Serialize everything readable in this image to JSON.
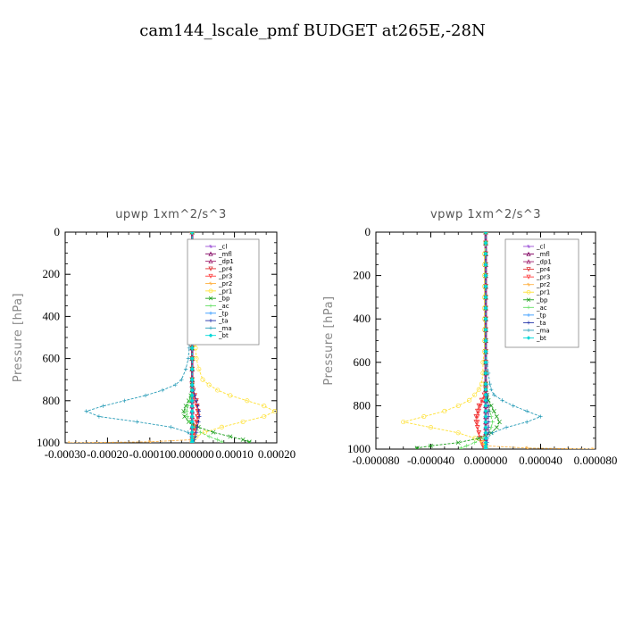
{
  "figure": {
    "title": "cam144_lscale_pmf  BUDGET at265E,-28N"
  },
  "legend_order": [
    "_cl",
    "_mfl",
    "_dp1",
    "_pr4",
    "_pr3",
    "_pr2",
    "_pr1",
    "_bp",
    "_ac",
    "_tp",
    "_ta",
    "_ma",
    "_bt"
  ],
  "colors": {
    "_cl": "#9a4fd6",
    "_mfl": "#800060",
    "_dp1": "#a0206e",
    "_pr4": "#e03030",
    "_pr3": "#ff3a3a",
    "_pr2": "#ffb347",
    "_pr1": "#ffe135",
    "_bp": "#1a9e1a",
    "_ac": "#66e066",
    "_tp": "#3399ff",
    "_ta": "#1f2fa8",
    "_ma": "#2a9db8",
    "_bt": "#00d8d8"
  },
  "chart_data": [
    {
      "type": "line",
      "title": "upwp   1xm^2/s^3",
      "xlabel": "",
      "ylabel": "Pressure [hPa]",
      "xlim": [
        -0.0003,
        0.0002
      ],
      "ylim": [
        1000,
        0
      ],
      "xticks": [
        "-0.00030",
        "-0.00020",
        "-0.00010",
        "0.000000",
        "0.00010",
        "0.00020"
      ],
      "yticks": [
        "0",
        "200",
        "400",
        "600",
        "800",
        "1000"
      ],
      "legend_position": "top-right",
      "pressure": [
        0,
        50,
        100,
        150,
        200,
        250,
        300,
        350,
        400,
        450,
        500,
        550,
        600,
        650,
        700,
        725,
        750,
        775,
        800,
        825,
        850,
        875,
        900,
        925,
        950,
        970,
        985,
        995,
        1000
      ],
      "series": [
        {
          "name": "_cl",
          "values": [
            0,
            0,
            0,
            0,
            0,
            0,
            0,
            0,
            0,
            0,
            0,
            0,
            0,
            0,
            0,
            0,
            0,
            0,
            0,
            0,
            0,
            0,
            0,
            0,
            0,
            0,
            0,
            0,
            0
          ]
        },
        {
          "name": "_mfl",
          "values": [
            0,
            0,
            0,
            0,
            0,
            0,
            0,
            0,
            0,
            0,
            0,
            0,
            0,
            0,
            0,
            0,
            0,
            0,
            0,
            0,
            0,
            0,
            0,
            0,
            0,
            0,
            0,
            0,
            0
          ]
        },
        {
          "name": "_dp1",
          "values": [
            0,
            0,
            0,
            0,
            0,
            0,
            0,
            0,
            0,
            0,
            0,
            0,
            0,
            0,
            0,
            0,
            0,
            0,
            0,
            0,
            0,
            0,
            0,
            0,
            0,
            0,
            0,
            0,
            0
          ]
        },
        {
          "name": "_pr4",
          "values": [
            0,
            0,
            0,
            0,
            0,
            0,
            0,
            0,
            0,
            0,
            0,
            0,
            0,
            0,
            0,
            0,
            3e-06,
            6e-06,
            1e-05,
            1.2e-05,
            1.3e-05,
            1.2e-05,
            1e-05,
            7e-06,
            4e-06,
            2e-06,
            1e-06,
            0,
            0
          ]
        },
        {
          "name": "_pr3",
          "values": [
            0,
            0,
            0,
            0,
            0,
            0,
            0,
            0,
            0,
            0,
            0,
            0,
            0,
            0,
            0,
            0,
            2e-06,
            5e-06,
            8e-06,
            1.1e-05,
            1.4e-05,
            1.4e-05,
            1.2e-05,
            9e-06,
            6e-06,
            4e-06,
            2e-06,
            1e-06,
            0
          ]
        },
        {
          "name": "_pr2",
          "values": [
            0,
            0,
            0,
            0,
            0,
            0,
            0,
            0,
            0,
            0,
            0,
            0,
            0,
            0,
            0,
            0,
            0,
            0,
            0,
            0,
            0,
            0,
            0,
            0,
            0,
            0,
            0,
            -0.0001,
            -0.00029
          ]
        },
        {
          "name": "_pr1",
          "values": [
            0,
            1e-06,
            2e-06,
            3e-06,
            4e-06,
            5e-06,
            5e-06,
            5e-06,
            6e-06,
            6e-06,
            7e-06,
            8e-06,
            1e-05,
            1.6e-05,
            2.5e-05,
            4e-05,
            6e-05,
            9e-05,
            0.00013,
            0.00017,
            0.000195,
            0.00017,
            0.00012,
            7e-05,
            3e-05,
            1e-05,
            3e-06,
            0,
            0
          ]
        },
        {
          "name": "_bp",
          "values": [
            0,
            0,
            0,
            0,
            0,
            0,
            0,
            0,
            0,
            0,
            0,
            0,
            0,
            0,
            0,
            0,
            0,
            -3e-06,
            -8e-06,
            -1.5e-05,
            -2e-05,
            -1.8e-05,
            -8e-06,
            1.5e-05,
            5e-05,
            9e-05,
            0.00012,
            0.000135,
            0.000135
          ]
        },
        {
          "name": "_ac",
          "values": [
            0,
            0,
            0,
            0,
            0,
            0,
            0,
            0,
            0,
            0,
            0,
            0,
            0,
            0,
            0,
            0,
            0,
            -2e-06,
            -6e-06,
            -1e-05,
            -1.3e-05,
            -1.1e-05,
            -6e-06,
            5e-06,
            2e-05,
            4e-05,
            6e-05,
            7e-05,
            7e-05
          ]
        },
        {
          "name": "_tp",
          "values": [
            0,
            0,
            0,
            0,
            0,
            0,
            0,
            0,
            0,
            0,
            0,
            0,
            0,
            0,
            0,
            0,
            0,
            0,
            0,
            0,
            0,
            0,
            0,
            0,
            0,
            0,
            0,
            0,
            0
          ]
        },
        {
          "name": "_ta",
          "values": [
            0,
            0,
            0,
            0,
            0,
            0,
            0,
            0,
            0,
            0,
            0,
            0,
            0,
            0,
            0,
            0,
            3e-06,
            6e-06,
            1e-05,
            1.3e-05,
            1.6e-05,
            1.7e-05,
            1.5e-05,
            1.2e-05,
            1e-05,
            8e-06,
            5e-06,
            2e-06,
            0
          ]
        },
        {
          "name": "_ma",
          "values": [
            0,
            0,
            -1e-06,
            -1e-06,
            -2e-06,
            -3e-06,
            -3e-06,
            -4e-06,
            -4e-06,
            -5e-06,
            -6e-06,
            -7e-06,
            -9e-06,
            -1.5e-05,
            -2.5e-05,
            -4e-05,
            -7e-05,
            -0.00011,
            -0.00016,
            -0.00021,
            -0.00025,
            -0.00022,
            -0.00013,
            -5e-05,
            -1e-05,
            -2e-06,
            0,
            0,
            0
          ]
        },
        {
          "name": "_bt",
          "values": [
            0,
            0,
            0,
            0,
            0,
            0,
            0,
            0,
            0,
            0,
            0,
            0,
            0,
            0,
            0,
            0,
            0,
            0,
            0,
            0,
            0,
            0,
            0,
            0,
            0,
            0,
            0,
            0,
            0
          ]
        }
      ]
    },
    {
      "type": "line",
      "title": "vpwp   1xm^2/s^3",
      "xlabel": "",
      "ylabel": "Pressure [hPa]",
      "xlim": [
        -8e-05,
        8e-05
      ],
      "ylim": [
        1000,
        0
      ],
      "xticks": [
        "-0.000080",
        "-0.000040",
        "0.000000",
        "0.000040",
        "0.000080"
      ],
      "yticks": [
        "0",
        "200",
        "400",
        "600",
        "800",
        "1000"
      ],
      "legend_position": "top-right",
      "pressure": [
        0,
        50,
        100,
        150,
        200,
        250,
        300,
        350,
        400,
        450,
        500,
        550,
        600,
        650,
        700,
        725,
        750,
        775,
        800,
        825,
        850,
        875,
        900,
        925,
        950,
        970,
        985,
        995,
        1000
      ],
      "series": [
        {
          "name": "_cl",
          "values": [
            0,
            0,
            0,
            0,
            0,
            0,
            0,
            0,
            0,
            0,
            0,
            0,
            0,
            0,
            0,
            0,
            0,
            0,
            0,
            0,
            0,
            0,
            0,
            0,
            0,
            0,
            0,
            0,
            0
          ]
        },
        {
          "name": "_mfl",
          "values": [
            0,
            0,
            0,
            0,
            0,
            0,
            0,
            0,
            0,
            0,
            0,
            0,
            0,
            0,
            0,
            0,
            0,
            0,
            0,
            0,
            0,
            0,
            0,
            0,
            0,
            0,
            0,
            0,
            0
          ]
        },
        {
          "name": "_dp1",
          "values": [
            0,
            0,
            0,
            0,
            0,
            0,
            0,
            0,
            0,
            0,
            0,
            0,
            0,
            0,
            0,
            0,
            0,
            0,
            0,
            0,
            0,
            0,
            0,
            0,
            0,
            0,
            0,
            0,
            0
          ]
        },
        {
          "name": "_pr4",
          "values": [
            0,
            0,
            0,
            0,
            0,
            0,
            0,
            0,
            0,
            0,
            0,
            0,
            0,
            0,
            0,
            0,
            -1e-06,
            -3e-06,
            -5e-06,
            -6e-06,
            -7e-06,
            -7e-06,
            -6e-06,
            -5e-06,
            -4e-06,
            -3e-06,
            -2e-06,
            -1e-06,
            0
          ]
        },
        {
          "name": "_pr3",
          "values": [
            0,
            0,
            0,
            0,
            0,
            0,
            0,
            0,
            0,
            0,
            0,
            0,
            0,
            0,
            0,
            0,
            -1e-06,
            -2e-06,
            -4e-06,
            -5e-06,
            -6e-06,
            -6e-06,
            -6e-06,
            -5e-06,
            -4e-06,
            -3e-06,
            -2e-06,
            -1e-06,
            0
          ]
        },
        {
          "name": "_pr2",
          "values": [
            0,
            0,
            0,
            0,
            0,
            0,
            0,
            0,
            0,
            0,
            0,
            0,
            0,
            0,
            0,
            0,
            0,
            0,
            0,
            0,
            0,
            0,
            0,
            0,
            0,
            0,
            0,
            3e-05,
            7.8e-05
          ]
        },
        {
          "name": "_pr1",
          "values": [
            0,
            0,
            -1e-06,
            -1e-06,
            -1e-06,
            -1e-06,
            -1e-06,
            -1e-06,
            -1e-06,
            -1e-06,
            -1e-06,
            -1e-06,
            -2e-06,
            -2e-06,
            -3e-06,
            -5e-06,
            -8e-06,
            -1.2e-05,
            -2e-05,
            -3e-05,
            -4.5e-05,
            -6e-05,
            -4e-05,
            -2e-05,
            -8e-06,
            -2e-06,
            0,
            0,
            0
          ]
        },
        {
          "name": "_bp",
          "values": [
            0,
            0,
            0,
            0,
            0,
            0,
            0,
            0,
            0,
            0,
            0,
            0,
            0,
            0,
            0,
            0,
            1e-06,
            2e-06,
            4e-06,
            6e-06,
            8e-06,
            1e-05,
            8e-06,
            4e-06,
            -5e-06,
            -2e-05,
            -4e-05,
            -5e-05,
            -5e-05
          ]
        },
        {
          "name": "_ac",
          "values": [
            0,
            0,
            0,
            0,
            0,
            0,
            0,
            0,
            0,
            0,
            0,
            0,
            0,
            0,
            0,
            0,
            0,
            1e-06,
            2e-06,
            3e-06,
            4e-06,
            5e-06,
            4e-06,
            2e-06,
            -2e-06,
            -8e-06,
            -1.4e-05,
            -1.8e-05,
            -1.8e-05
          ]
        },
        {
          "name": "_tp",
          "values": [
            0,
            0,
            0,
            0,
            0,
            0,
            0,
            0,
            0,
            0,
            0,
            0,
            0,
            0,
            0,
            0,
            0,
            0,
            0,
            0,
            0,
            0,
            0,
            0,
            0,
            0,
            0,
            0,
            0
          ]
        },
        {
          "name": "_ta",
          "values": [
            0,
            0,
            0,
            0,
            0,
            0,
            0,
            0,
            0,
            0,
            0,
            0,
            0,
            0,
            0,
            0,
            1e-06,
            1e-06,
            2e-06,
            2e-06,
            2e-06,
            2e-06,
            2e-06,
            2e-06,
            1e-06,
            1e-06,
            0,
            0,
            0
          ]
        },
        {
          "name": "_ma",
          "values": [
            0,
            0,
            0,
            0,
            0,
            0,
            0,
            0,
            0,
            0,
            0,
            0,
            1e-06,
            2e-06,
            3e-06,
            4e-06,
            6e-06,
            1.2e-05,
            2e-05,
            3e-05,
            4e-05,
            3e-05,
            1.5e-05,
            5e-06,
            1e-06,
            0,
            0,
            0,
            0
          ]
        },
        {
          "name": "_bt",
          "values": [
            0,
            0,
            0,
            0,
            0,
            0,
            0,
            0,
            0,
            0,
            0,
            0,
            0,
            0,
            0,
            0,
            0,
            0,
            0,
            0,
            0,
            0,
            0,
            0,
            0,
            0,
            0,
            0,
            0
          ]
        }
      ]
    }
  ]
}
